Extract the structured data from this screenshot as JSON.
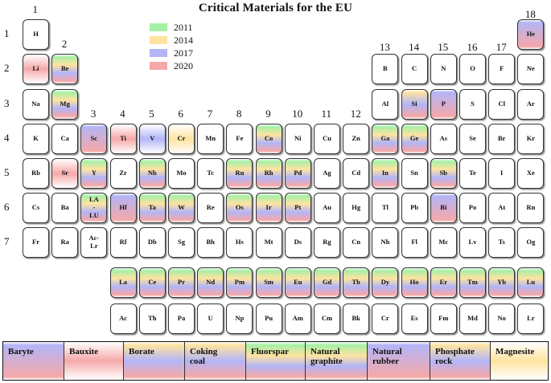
{
  "title": "Critical Materials for the EU",
  "colors": {
    "2011": "#a6f0a6",
    "2014": "#ffe3a0",
    "2017": "#b3b5f7",
    "2020": "#f6a8a8"
  },
  "legend": [
    {
      "label": "2011",
      "color": "#a6f0a6"
    },
    {
      "label": "2014",
      "color": "#ffe3a0"
    },
    {
      "label": "2017",
      "color": "#b3b5f7"
    },
    {
      "label": "2020",
      "color": "#f6a8a8"
    }
  ],
  "group_labels": [
    "1",
    "2",
    "3",
    "4",
    "5",
    "6",
    "7",
    "8",
    "9",
    "10",
    "11",
    "12",
    "13",
    "14",
    "15",
    "16",
    "17",
    "18"
  ],
  "period_labels": [
    "1",
    "2",
    "3",
    "4",
    "5",
    "6",
    "7"
  ],
  "elements": [
    {
      "s": "H",
      "r": 1,
      "c": 1,
      "y": []
    },
    {
      "s": "He",
      "r": 1,
      "c": 18,
      "y": [
        "2017",
        "2020"
      ]
    },
    {
      "s": "Li",
      "r": 2,
      "c": 1,
      "y": [
        "2020"
      ]
    },
    {
      "s": "Be",
      "r": 2,
      "c": 2,
      "y": [
        "2011",
        "2014",
        "2017",
        "2020"
      ]
    },
    {
      "s": "B",
      "r": 2,
      "c": 13,
      "y": []
    },
    {
      "s": "C",
      "r": 2,
      "c": 14,
      "y": []
    },
    {
      "s": "N",
      "r": 2,
      "c": 15,
      "y": []
    },
    {
      "s": "O",
      "r": 2,
      "c": 16,
      "y": []
    },
    {
      "s": "F",
      "r": 2,
      "c": 17,
      "y": []
    },
    {
      "s": "Ne",
      "r": 2,
      "c": 18,
      "y": []
    },
    {
      "s": "Na",
      "r": 3,
      "c": 1,
      "y": []
    },
    {
      "s": "Mg",
      "r": 3,
      "c": 2,
      "y": [
        "2011",
        "2014",
        "2017",
        "2020"
      ]
    },
    {
      "s": "Al",
      "r": 3,
      "c": 13,
      "y": []
    },
    {
      "s": "Si",
      "r": 3,
      "c": 14,
      "y": [
        "2014",
        "2017",
        "2020"
      ]
    },
    {
      "s": "P",
      "r": 3,
      "c": 15,
      "y": [
        "2017",
        "2020"
      ]
    },
    {
      "s": "S",
      "r": 3,
      "c": 16,
      "y": []
    },
    {
      "s": "Cl",
      "r": 3,
      "c": 17,
      "y": []
    },
    {
      "s": "Ar",
      "r": 3,
      "c": 18,
      "y": []
    },
    {
      "s": "K",
      "r": 4,
      "c": 1,
      "y": []
    },
    {
      "s": "Ca",
      "r": 4,
      "c": 2,
      "y": []
    },
    {
      "s": "Sc",
      "r": 4,
      "c": 3,
      "y": [
        "2017",
        "2020"
      ]
    },
    {
      "s": "Ti",
      "r": 4,
      "c": 4,
      "y": [
        "2020"
      ]
    },
    {
      "s": "V",
      "r": 4,
      "c": 5,
      "y": [
        "2017"
      ]
    },
    {
      "s": "Cr",
      "r": 4,
      "c": 6,
      "y": [
        "2014"
      ]
    },
    {
      "s": "Mn",
      "r": 4,
      "c": 7,
      "y": []
    },
    {
      "s": "Fe",
      "r": 4,
      "c": 8,
      "y": []
    },
    {
      "s": "Co",
      "r": 4,
      "c": 9,
      "y": [
        "2011",
        "2014",
        "2017",
        "2020"
      ]
    },
    {
      "s": "Ni",
      "r": 4,
      "c": 10,
      "y": []
    },
    {
      "s": "Cu",
      "r": 4,
      "c": 11,
      "y": []
    },
    {
      "s": "Zn",
      "r": 4,
      "c": 12,
      "y": []
    },
    {
      "s": "Ga",
      "r": 4,
      "c": 13,
      "y": [
        "2011",
        "2014",
        "2017",
        "2020"
      ]
    },
    {
      "s": "Ge",
      "r": 4,
      "c": 14,
      "y": [
        "2011",
        "2014",
        "2017",
        "2020"
      ]
    },
    {
      "s": "As",
      "r": 4,
      "c": 15,
      "y": []
    },
    {
      "s": "Se",
      "r": 4,
      "c": 16,
      "y": []
    },
    {
      "s": "Br",
      "r": 4,
      "c": 17,
      "y": []
    },
    {
      "s": "Kr",
      "r": 4,
      "c": 18,
      "y": []
    },
    {
      "s": "Rb",
      "r": 5,
      "c": 1,
      "y": []
    },
    {
      "s": "Sr",
      "r": 5,
      "c": 2,
      "y": [
        "2020"
      ]
    },
    {
      "s": "Y",
      "r": 5,
      "c": 3,
      "y": [
        "2011",
        "2014",
        "2017",
        "2020"
      ]
    },
    {
      "s": "Zr",
      "r": 5,
      "c": 4,
      "y": []
    },
    {
      "s": "Nb",
      "r": 5,
      "c": 5,
      "y": [
        "2011",
        "2014",
        "2017",
        "2020"
      ]
    },
    {
      "s": "Mo",
      "r": 5,
      "c": 6,
      "y": []
    },
    {
      "s": "Tc",
      "r": 5,
      "c": 7,
      "y": []
    },
    {
      "s": "Ru",
      "r": 5,
      "c": 8,
      "y": [
        "2011",
        "2014",
        "2017",
        "2020"
      ]
    },
    {
      "s": "Rh",
      "r": 5,
      "c": 9,
      "y": [
        "2011",
        "2014",
        "2017",
        "2020"
      ]
    },
    {
      "s": "Pd",
      "r": 5,
      "c": 10,
      "y": [
        "2011",
        "2014",
        "2017",
        "2020"
      ]
    },
    {
      "s": "Ag",
      "r": 5,
      "c": 11,
      "y": []
    },
    {
      "s": "Cd",
      "r": 5,
      "c": 12,
      "y": []
    },
    {
      "s": "In",
      "r": 5,
      "c": 13,
      "y": [
        "2011",
        "2014",
        "2017",
        "2020"
      ]
    },
    {
      "s": "Sn",
      "r": 5,
      "c": 14,
      "y": []
    },
    {
      "s": "Sb",
      "r": 5,
      "c": 15,
      "y": [
        "2011",
        "2014",
        "2017",
        "2020"
      ]
    },
    {
      "s": "Te",
      "r": 5,
      "c": 16,
      "y": []
    },
    {
      "s": "I",
      "r": 5,
      "c": 17,
      "y": []
    },
    {
      "s": "Xe",
      "r": 5,
      "c": 18,
      "y": []
    },
    {
      "s": "Cs",
      "r": 6,
      "c": 1,
      "y": []
    },
    {
      "s": "Ba",
      "r": 6,
      "c": 2,
      "y": []
    },
    {
      "s": "LA\n-\nLU",
      "r": 6,
      "c": 3,
      "y": [
        "2011",
        "2014",
        "2017",
        "2020"
      ]
    },
    {
      "s": "Hf",
      "r": 6,
      "c": 4,
      "y": [
        "2017",
        "2020"
      ]
    },
    {
      "s": "Ta",
      "r": 6,
      "c": 5,
      "y": [
        "2011",
        "2014",
        "2017",
        "2020"
      ]
    },
    {
      "s": "W",
      "r": 6,
      "c": 6,
      "y": [
        "2011",
        "2014",
        "2017",
        "2020"
      ]
    },
    {
      "s": "Re",
      "r": 6,
      "c": 7,
      "y": []
    },
    {
      "s": "Os",
      "r": 6,
      "c": 8,
      "y": [
        "2011",
        "2014",
        "2017",
        "2020"
      ]
    },
    {
      "s": "Ir",
      "r": 6,
      "c": 9,
      "y": [
        "2011",
        "2014",
        "2017",
        "2020"
      ]
    },
    {
      "s": "Pt",
      "r": 6,
      "c": 10,
      "y": [
        "2011",
        "2014",
        "2017",
        "2020"
      ]
    },
    {
      "s": "Au",
      "r": 6,
      "c": 11,
      "y": []
    },
    {
      "s": "Hg",
      "r": 6,
      "c": 12,
      "y": []
    },
    {
      "s": "Tl",
      "r": 6,
      "c": 13,
      "y": []
    },
    {
      "s": "Pb",
      "r": 6,
      "c": 14,
      "y": []
    },
    {
      "s": "Bi",
      "r": 6,
      "c": 15,
      "y": [
        "2017",
        "2020"
      ]
    },
    {
      "s": "Po",
      "r": 6,
      "c": 16,
      "y": []
    },
    {
      "s": "At",
      "r": 6,
      "c": 17,
      "y": []
    },
    {
      "s": "Rn",
      "r": 6,
      "c": 18,
      "y": []
    },
    {
      "s": "Fr",
      "r": 7,
      "c": 1,
      "y": []
    },
    {
      "s": "Ra",
      "r": 7,
      "c": 2,
      "y": []
    },
    {
      "s": "Ac-\nLr",
      "r": 7,
      "c": 3,
      "y": []
    },
    {
      "s": "Rf",
      "r": 7,
      "c": 4,
      "y": []
    },
    {
      "s": "Db",
      "r": 7,
      "c": 5,
      "y": []
    },
    {
      "s": "Sg",
      "r": 7,
      "c": 6,
      "y": []
    },
    {
      "s": "Bh",
      "r": 7,
      "c": 7,
      "y": []
    },
    {
      "s": "Hs",
      "r": 7,
      "c": 8,
      "y": []
    },
    {
      "s": "Mt",
      "r": 7,
      "c": 9,
      "y": []
    },
    {
      "s": "Ds",
      "r": 7,
      "c": 10,
      "y": []
    },
    {
      "s": "Rg",
      "r": 7,
      "c": 11,
      "y": []
    },
    {
      "s": "Cn",
      "r": 7,
      "c": 12,
      "y": []
    },
    {
      "s": "Nh",
      "r": 7,
      "c": 13,
      "y": []
    },
    {
      "s": "Fl",
      "r": 7,
      "c": 14,
      "y": []
    },
    {
      "s": "Mc",
      "r": 7,
      "c": 15,
      "y": []
    },
    {
      "s": "Lv",
      "r": 7,
      "c": 16,
      "y": []
    },
    {
      "s": "Ts",
      "r": 7,
      "c": 17,
      "y": []
    },
    {
      "s": "Og",
      "r": 7,
      "c": 18,
      "y": []
    },
    {
      "s": "La",
      "r": 8,
      "c": 4,
      "y": [
        "2011",
        "2014",
        "2017",
        "2020"
      ]
    },
    {
      "s": "Ce",
      "r": 8,
      "c": 5,
      "y": [
        "2011",
        "2014",
        "2017",
        "2020"
      ]
    },
    {
      "s": "Pr",
      "r": 8,
      "c": 6,
      "y": [
        "2011",
        "2014",
        "2017",
        "2020"
      ]
    },
    {
      "s": "Nd",
      "r": 8,
      "c": 7,
      "y": [
        "2011",
        "2014",
        "2017",
        "2020"
      ]
    },
    {
      "s": "Pm",
      "r": 8,
      "c": 8,
      "y": [
        "2011",
        "2014",
        "2017",
        "2020"
      ]
    },
    {
      "s": "Sm",
      "r": 8,
      "c": 9,
      "y": [
        "2011",
        "2014",
        "2017",
        "2020"
      ]
    },
    {
      "s": "Eu",
      "r": 8,
      "c": 10,
      "y": [
        "2011",
        "2014",
        "2017",
        "2020"
      ]
    },
    {
      "s": "Gd",
      "r": 8,
      "c": 11,
      "y": [
        "2011",
        "2014",
        "2017",
        "2020"
      ]
    },
    {
      "s": "Tb",
      "r": 8,
      "c": 12,
      "y": [
        "2011",
        "2014",
        "2017",
        "2020"
      ]
    },
    {
      "s": "Dy",
      "r": 8,
      "c": 13,
      "y": [
        "2011",
        "2014",
        "2017",
        "2020"
      ]
    },
    {
      "s": "Ho",
      "r": 8,
      "c": 14,
      "y": [
        "2011",
        "2014",
        "2017",
        "2020"
      ]
    },
    {
      "s": "Er",
      "r": 8,
      "c": 15,
      "y": [
        "2011",
        "2014",
        "2017",
        "2020"
      ]
    },
    {
      "s": "Tm",
      "r": 8,
      "c": 16,
      "y": [
        "2011",
        "2014",
        "2017",
        "2020"
      ]
    },
    {
      "s": "Yb",
      "r": 8,
      "c": 17,
      "y": [
        "2011",
        "2014",
        "2017",
        "2020"
      ]
    },
    {
      "s": "Lu",
      "r": 8,
      "c": 18,
      "y": [
        "2011",
        "2014",
        "2017",
        "2020"
      ]
    },
    {
      "s": "Ac",
      "r": 9,
      "c": 4,
      "y": []
    },
    {
      "s": "Th",
      "r": 9,
      "c": 5,
      "y": []
    },
    {
      "s": "Pa",
      "r": 9,
      "c": 6,
      "y": []
    },
    {
      "s": "U",
      "r": 9,
      "c": 7,
      "y": []
    },
    {
      "s": "Np",
      "r": 9,
      "c": 8,
      "y": []
    },
    {
      "s": "Pu",
      "r": 9,
      "c": 9,
      "y": []
    },
    {
      "s": "Am",
      "r": 9,
      "c": 10,
      "y": []
    },
    {
      "s": "Cm",
      "r": 9,
      "c": 11,
      "y": []
    },
    {
      "s": "Bk",
      "r": 9,
      "c": 12,
      "y": []
    },
    {
      "s": "Cr",
      "r": 9,
      "c": 13,
      "y": []
    },
    {
      "s": "Es",
      "r": 9,
      "c": 14,
      "y": []
    },
    {
      "s": "Fm",
      "r": 9,
      "c": 15,
      "y": []
    },
    {
      "s": "Md",
      "r": 9,
      "c": 16,
      "y": []
    },
    {
      "s": "No",
      "r": 9,
      "c": 17,
      "y": []
    },
    {
      "s": "Lr",
      "r": 9,
      "c": 18,
      "y": []
    }
  ],
  "materials": [
    {
      "label": "Baryte",
      "y": [
        "2017",
        "2020"
      ]
    },
    {
      "label": "Bauxite",
      "y": [
        "2020"
      ]
    },
    {
      "label": "Borate",
      "y": [
        "2014",
        "2017",
        "2020"
      ]
    },
    {
      "label": "Coking\ncoal",
      "y": [
        "2014",
        "2017",
        "2020"
      ]
    },
    {
      "label": "Fluorspar",
      "y": [
        "2011",
        "2014",
        "2017",
        "2020"
      ]
    },
    {
      "label": "Natural\ngraphite",
      "y": [
        "2011",
        "2014",
        "2017",
        "2020"
      ]
    },
    {
      "label": "Natural\nrubber",
      "y": [
        "2017",
        "2020"
      ]
    },
    {
      "label": "Phosphate\nrock",
      "y": [
        "2014",
        "2017",
        "2020"
      ]
    },
    {
      "label": "Magnesite",
      "y": [
        "2014"
      ]
    }
  ]
}
